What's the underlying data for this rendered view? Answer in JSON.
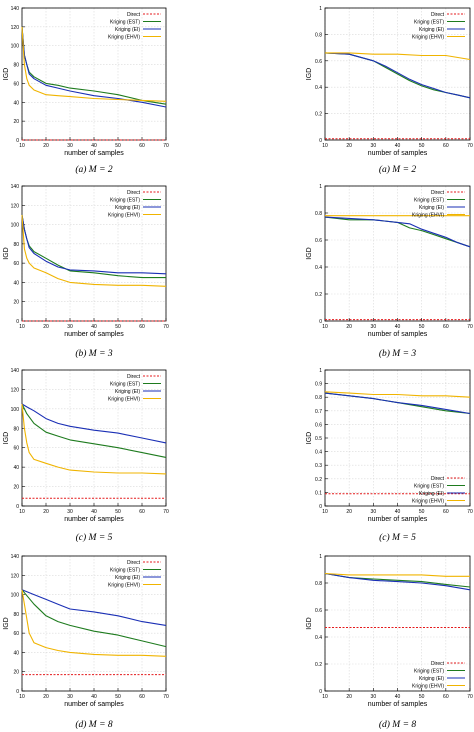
{
  "legend_labels": [
    "Direct",
    "Kriging (EST)",
    "Kriging (EI)",
    "Kriging (EHVI)"
  ],
  "colors": {
    "Direct": "#e41a1c",
    "Kriging (EST)": "#1e7b1e",
    "Kriging (EI)": "#1a2fb5",
    "Kriging (EHVI)": "#f0b400"
  },
  "chart_data": [
    {
      "type": "line",
      "caption": "(a)  M = 2",
      "ylabel": "IGD",
      "xlabel": "number of samples",
      "xlim": [
        10,
        70
      ],
      "ylim": [
        0,
        140
      ],
      "legend": "top-right",
      "xticks": [
        10,
        20,
        30,
        40,
        50,
        60,
        70
      ],
      "yticks": [
        0,
        20,
        40,
        60,
        80,
        100,
        120,
        140
      ],
      "series": [
        {
          "name": "Direct",
          "dashed": true,
          "x": [
            10,
            70
          ],
          "y": [
            0,
            0
          ]
        },
        {
          "name": "Kriging (EST)",
          "x": [
            10,
            11,
            12,
            13,
            15,
            20,
            25,
            30,
            40,
            50,
            60,
            70
          ],
          "y": [
            120,
            90,
            80,
            72,
            67,
            60,
            58,
            55,
            52,
            48,
            42,
            38
          ]
        },
        {
          "name": "Kriging (EI)",
          "x": [
            10,
            11,
            12,
            13,
            15,
            20,
            25,
            30,
            40,
            50,
            60,
            70
          ],
          "y": [
            120,
            90,
            80,
            70,
            65,
            58,
            55,
            52,
            47,
            44,
            40,
            35
          ]
        },
        {
          "name": "Kriging (EHVI)",
          "x": [
            10,
            11,
            12,
            13,
            15,
            20,
            25,
            30,
            40,
            50,
            60,
            70
          ],
          "y": [
            120,
            80,
            65,
            58,
            53,
            48,
            47,
            46,
            44,
            43,
            42,
            41
          ]
        }
      ]
    },
    {
      "type": "line",
      "caption": "(a)  M = 2",
      "ylabel": "IGD",
      "xlabel": "number of samples",
      "xlim": [
        10,
        70
      ],
      "ylim": [
        0,
        1
      ],
      "legend": "top-right",
      "xticks": [
        10,
        20,
        30,
        40,
        50,
        60,
        70
      ],
      "yticks": [
        0,
        0.2,
        0.4,
        0.6,
        0.8,
        1
      ],
      "series": [
        {
          "name": "Direct",
          "dashed": true,
          "x": [
            10,
            70
          ],
          "y": [
            0.01,
            0.01
          ]
        },
        {
          "name": "Kriging (EST)",
          "x": [
            10,
            20,
            30,
            35,
            40,
            45,
            50,
            55,
            60,
            65,
            70
          ],
          "y": [
            0.66,
            0.65,
            0.6,
            0.55,
            0.5,
            0.45,
            0.41,
            0.38,
            0.36,
            0.34,
            0.32
          ]
        },
        {
          "name": "Kriging (EI)",
          "x": [
            10,
            20,
            30,
            35,
            40,
            45,
            50,
            55,
            60,
            65,
            70
          ],
          "y": [
            0.66,
            0.65,
            0.6,
            0.56,
            0.51,
            0.46,
            0.42,
            0.39,
            0.36,
            0.34,
            0.32
          ]
        },
        {
          "name": "Kriging (EHVI)",
          "x": [
            10,
            20,
            30,
            40,
            50,
            60,
            70
          ],
          "y": [
            0.66,
            0.66,
            0.65,
            0.65,
            0.64,
            0.64,
            0.61
          ]
        }
      ]
    },
    {
      "type": "line",
      "caption": "(b)  M = 3",
      "ylabel": "IGD",
      "xlabel": "number of samples",
      "xlim": [
        10,
        70
      ],
      "ylim": [
        0,
        140
      ],
      "legend": "top-right",
      "xticks": [
        10,
        20,
        30,
        40,
        50,
        60,
        70
      ],
      "yticks": [
        0,
        20,
        40,
        60,
        80,
        100,
        120,
        140
      ],
      "series": [
        {
          "name": "Direct",
          "dashed": true,
          "x": [
            10,
            70
          ],
          "y": [
            0,
            0
          ]
        },
        {
          "name": "Kriging (EST)",
          "x": [
            10,
            11,
            12,
            13,
            15,
            20,
            25,
            30,
            40,
            50,
            60,
            70
          ],
          "y": [
            110,
            95,
            85,
            78,
            72,
            65,
            58,
            52,
            50,
            47,
            45,
            45
          ]
        },
        {
          "name": "Kriging (EI)",
          "x": [
            10,
            11,
            12,
            13,
            15,
            20,
            25,
            30,
            40,
            50,
            60,
            70
          ],
          "y": [
            110,
            95,
            85,
            76,
            70,
            62,
            56,
            53,
            52,
            50,
            50,
            49
          ]
        },
        {
          "name": "Kriging (EHVI)",
          "x": [
            10,
            11,
            12,
            13,
            15,
            20,
            25,
            30,
            40,
            50,
            60,
            70
          ],
          "y": [
            110,
            75,
            65,
            60,
            55,
            50,
            44,
            40,
            38,
            37,
            37,
            36
          ]
        }
      ]
    },
    {
      "type": "line",
      "caption": "(b)  M = 3",
      "ylabel": "IGD",
      "xlabel": "number of samples",
      "xlim": [
        10,
        70
      ],
      "ylim": [
        0,
        1
      ],
      "legend": "top-right",
      "xticks": [
        10,
        20,
        30,
        40,
        50,
        60,
        70
      ],
      "yticks": [
        0,
        0.2,
        0.4,
        0.6,
        0.8,
        1
      ],
      "series": [
        {
          "name": "Direct",
          "dashed": true,
          "x": [
            10,
            70
          ],
          "y": [
            0.01,
            0.01
          ]
        },
        {
          "name": "Kriging (EST)",
          "x": [
            10,
            20,
            30,
            40,
            45,
            50,
            55,
            60,
            65,
            70
          ],
          "y": [
            0.77,
            0.75,
            0.75,
            0.73,
            0.69,
            0.67,
            0.64,
            0.61,
            0.58,
            0.55
          ]
        },
        {
          "name": "Kriging (EI)",
          "x": [
            10,
            20,
            30,
            40,
            45,
            50,
            55,
            60,
            65,
            70
          ],
          "y": [
            0.77,
            0.76,
            0.75,
            0.73,
            0.72,
            0.68,
            0.65,
            0.62,
            0.58,
            0.55
          ]
        },
        {
          "name": "Kriging (EHVI)",
          "x": [
            10,
            20,
            30,
            40,
            50,
            60,
            70
          ],
          "y": [
            0.78,
            0.78,
            0.78,
            0.78,
            0.78,
            0.78,
            0.78
          ]
        }
      ]
    },
    {
      "type": "line",
      "caption": "(c)  M = 5",
      "ylabel": "IGD",
      "xlabel": "number of samples",
      "xlim": [
        10,
        70
      ],
      "ylim": [
        0,
        140
      ],
      "legend": "top-right",
      "xticks": [
        10,
        20,
        30,
        40,
        50,
        60,
        70
      ],
      "yticks": [
        0,
        20,
        40,
        60,
        80,
        100,
        120,
        140
      ],
      "series": [
        {
          "name": "Direct",
          "dashed": true,
          "x": [
            10,
            70
          ],
          "y": [
            8,
            8
          ]
        },
        {
          "name": "Kriging (EST)",
          "x": [
            10,
            12,
            15,
            20,
            25,
            30,
            40,
            50,
            60,
            70
          ],
          "y": [
            105,
            95,
            85,
            76,
            72,
            68,
            64,
            60,
            55,
            50
          ]
        },
        {
          "name": "Kriging (EI)",
          "x": [
            10,
            12,
            15,
            20,
            25,
            30,
            40,
            50,
            60,
            70
          ],
          "y": [
            105,
            102,
            98,
            90,
            85,
            82,
            78,
            75,
            70,
            65
          ]
        },
        {
          "name": "Kriging (EHVI)",
          "x": [
            10,
            11,
            12,
            13,
            15,
            20,
            25,
            30,
            40,
            50,
            60,
            70
          ],
          "y": [
            105,
            80,
            65,
            55,
            48,
            44,
            40,
            37,
            35,
            34,
            34,
            33
          ]
        }
      ]
    },
    {
      "type": "line",
      "caption": "(c)  M = 5",
      "ylabel": "IGD",
      "xlabel": "number of samples",
      "xlim": [
        10,
        70
      ],
      "ylim": [
        0,
        1
      ],
      "legend": "bottom-right",
      "xticks": [
        10,
        20,
        30,
        40,
        50,
        60,
        70
      ],
      "yticks": [
        0,
        0.1,
        0.2,
        0.3,
        0.4,
        0.5,
        0.6,
        0.7,
        0.8,
        0.9,
        1
      ],
      "series": [
        {
          "name": "Direct",
          "dashed": true,
          "x": [
            10,
            70
          ],
          "y": [
            0.09,
            0.09
          ]
        },
        {
          "name": "Kriging (EST)",
          "x": [
            10,
            20,
            30,
            40,
            50,
            60,
            70
          ],
          "y": [
            0.83,
            0.81,
            0.79,
            0.76,
            0.73,
            0.7,
            0.68
          ]
        },
        {
          "name": "Kriging (EI)",
          "x": [
            10,
            20,
            30,
            40,
            50,
            60,
            70
          ],
          "y": [
            0.83,
            0.81,
            0.79,
            0.76,
            0.74,
            0.71,
            0.68
          ]
        },
        {
          "name": "Kriging (EHVI)",
          "x": [
            10,
            20,
            30,
            40,
            50,
            60,
            70
          ],
          "y": [
            0.84,
            0.83,
            0.82,
            0.82,
            0.81,
            0.81,
            0.8
          ]
        }
      ]
    },
    {
      "type": "line",
      "caption": "(d)  M = 8",
      "ylabel": "IGD",
      "xlabel": "number of samples",
      "xlim": [
        10,
        70
      ],
      "ylim": [
        0,
        140
      ],
      "legend": "top-right",
      "xticks": [
        10,
        20,
        30,
        40,
        50,
        60,
        70
      ],
      "yticks": [
        0,
        20,
        40,
        60,
        80,
        100,
        120,
        140
      ],
      "series": [
        {
          "name": "Direct",
          "dashed": true,
          "x": [
            10,
            70
          ],
          "y": [
            17,
            17
          ]
        },
        {
          "name": "Kriging (EST)",
          "x": [
            10,
            15,
            20,
            25,
            30,
            40,
            50,
            60,
            70
          ],
          "y": [
            105,
            90,
            78,
            72,
            68,
            62,
            58,
            52,
            46
          ]
        },
        {
          "name": "Kriging (EI)",
          "x": [
            10,
            15,
            20,
            25,
            30,
            40,
            50,
            60,
            70
          ],
          "y": [
            105,
            100,
            95,
            90,
            85,
            82,
            78,
            72,
            68
          ]
        },
        {
          "name": "Kriging (EHVI)",
          "x": [
            10,
            11,
            12,
            13,
            15,
            20,
            25,
            30,
            40,
            50,
            60,
            70
          ],
          "y": [
            105,
            90,
            75,
            60,
            50,
            45,
            42,
            40,
            38,
            37,
            37,
            36
          ]
        }
      ]
    },
    {
      "type": "line",
      "caption": "(d)  M = 8",
      "ylabel": "IGD",
      "xlabel": "number of samples",
      "xlim": [
        10,
        70
      ],
      "ylim": [
        0,
        1
      ],
      "legend": "bottom-right",
      "xticks": [
        10,
        20,
        30,
        40,
        50,
        60,
        70
      ],
      "yticks": [
        0,
        0.2,
        0.4,
        0.6,
        0.8,
        1
      ],
      "series": [
        {
          "name": "Direct",
          "dashed": true,
          "x": [
            10,
            70
          ],
          "y": [
            0.47,
            0.47
          ]
        },
        {
          "name": "Kriging (EST)",
          "x": [
            10,
            20,
            30,
            40,
            50,
            60,
            70
          ],
          "y": [
            0.87,
            0.84,
            0.83,
            0.82,
            0.81,
            0.79,
            0.77
          ]
        },
        {
          "name": "Kriging (EI)",
          "x": [
            10,
            20,
            30,
            40,
            50,
            60,
            70
          ],
          "y": [
            0.87,
            0.84,
            0.82,
            0.81,
            0.8,
            0.78,
            0.75
          ]
        },
        {
          "name": "Kriging (EHVI)",
          "x": [
            10,
            20,
            30,
            40,
            50,
            60,
            70
          ],
          "y": [
            0.87,
            0.86,
            0.86,
            0.86,
            0.86,
            0.85,
            0.85
          ]
        }
      ]
    }
  ]
}
